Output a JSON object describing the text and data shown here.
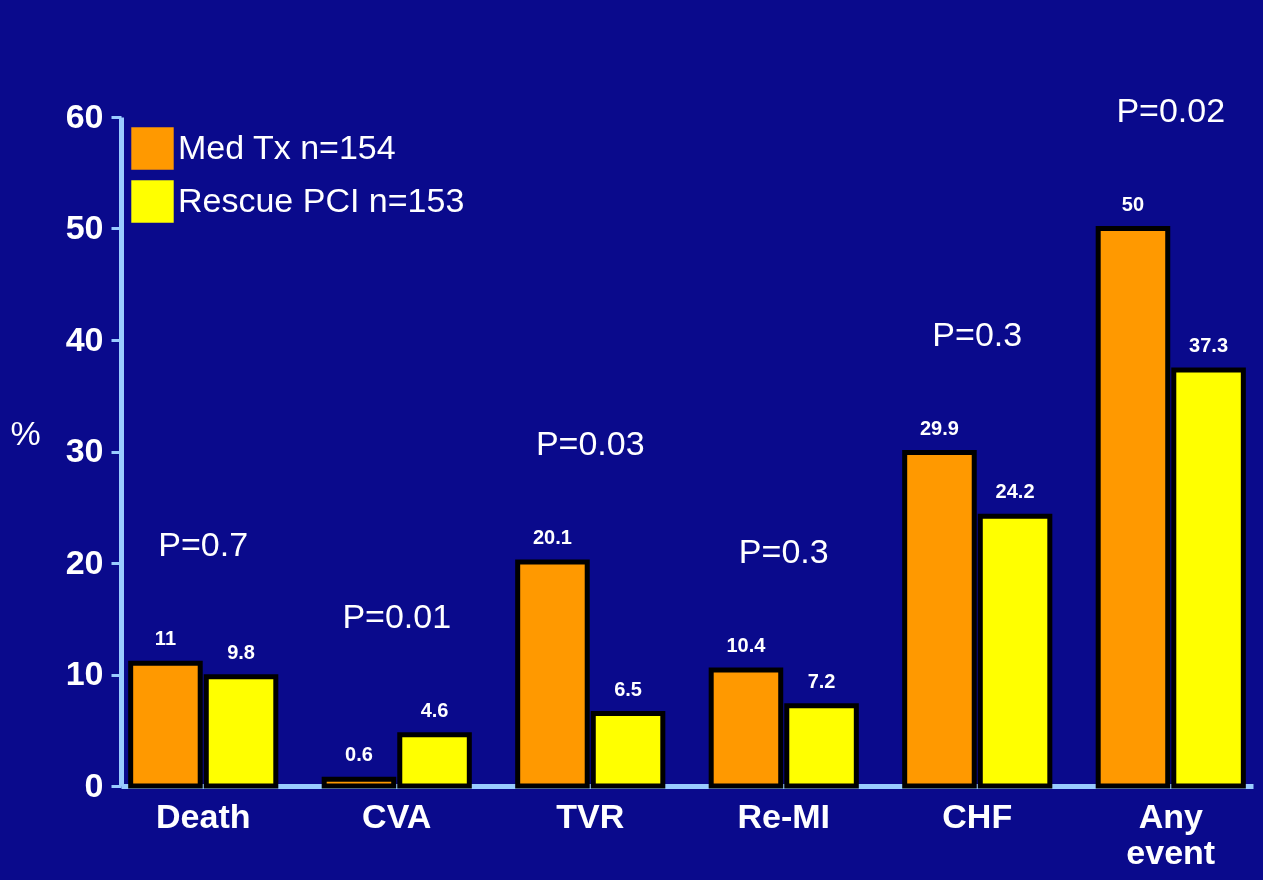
{
  "chart_data": {
    "type": "bar",
    "categories": [
      "Death",
      "CVA",
      "TVR",
      "Re-MI",
      "CHF",
      "Any event"
    ],
    "series": [
      {
        "name": "Med Tx  n=154",
        "color": "#ff9900",
        "values": [
          11,
          0.6,
          20.1,
          10.4,
          29.9,
          50
        ]
      },
      {
        "name": "Rescue PCI  n=153",
        "color": "#ffff00",
        "values": [
          9.8,
          4.6,
          6.5,
          7.2,
          24.2,
          37.3
        ]
      }
    ],
    "ylabel": "%",
    "ylim": [
      0,
      60
    ],
    "yticks": [
      0,
      10,
      20,
      30,
      40,
      50,
      60
    ],
    "grid": false,
    "legend": "top left",
    "data_labels": true,
    "annotations": [
      "P=0.7",
      "P=0.01",
      "P=0.03",
      "P=0.3",
      "P=0.3",
      "P=0.02"
    ]
  }
}
